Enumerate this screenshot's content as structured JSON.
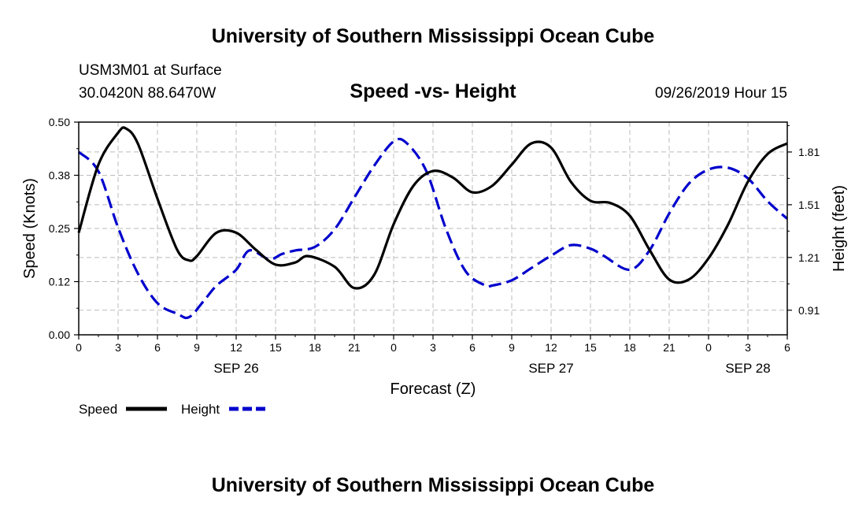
{
  "header": {
    "title": "University of Southern Mississippi Ocean Cube",
    "station": "USM3M01 at Surface",
    "location": "30.0420N 88.6470W",
    "subtitle": "Speed -vs- Height",
    "datetime": "09/26/2019 Hour 15"
  },
  "footer": {
    "title": "University of Southern Mississippi Ocean Cube"
  },
  "legend": {
    "speed_label": "Speed",
    "height_label": "Height"
  },
  "colors": {
    "speed": "#000000",
    "height": "#0000cc",
    "grid": "#bbbbbb"
  },
  "chart_data": {
    "type": "line",
    "title": "Speed -vs- Height",
    "xlabel": "Forecast (Z)",
    "ylabel": "Speed (Knots)",
    "y2label": "Height (feet)",
    "xlim": [
      0,
      54
    ],
    "ylim": [
      0,
      0.5
    ],
    "y2lim": [
      0.77,
      1.98
    ],
    "x_ticks": [
      0,
      3,
      6,
      9,
      12,
      15,
      18,
      21,
      24,
      27,
      30,
      33,
      36,
      39,
      42,
      45,
      48,
      51,
      54
    ],
    "x_tick_labels": [
      "0",
      "3",
      "6",
      "9",
      "12",
      "15",
      "18",
      "21",
      "0",
      "3",
      "6",
      "9",
      "12",
      "15",
      "18",
      "21",
      "0",
      "3",
      "6"
    ],
    "y_ticks": [
      0,
      0.125,
      0.25,
      0.375,
      0.5
    ],
    "y_tick_labels": [
      "0.00",
      "0.12",
      "0.25",
      "0.38",
      "0.50"
    ],
    "y2_ticks": [
      0.91,
      1.21,
      1.51,
      1.81
    ],
    "y2_tick_labels": [
      "0.91",
      "1.21",
      "1.51",
      "1.81"
    ],
    "date_labels": [
      {
        "x": 12,
        "label": "SEP 26"
      },
      {
        "x": 36,
        "label": "SEP 27"
      },
      {
        "x": 51,
        "label": "SEP 28"
      }
    ],
    "grid": true,
    "legend_position": "bottom-left",
    "series": [
      {
        "name": "Speed",
        "axis": "left",
        "style": "solid",
        "x": [
          0,
          1.5,
          3,
          3.6,
          4.5,
          6,
          7.5,
          8.4,
          9,
          10.5,
          12,
          13.5,
          15,
          16.5,
          17.5,
          19.5,
          21,
          22.5,
          24,
          25.5,
          27,
          28.5,
          30,
          31.5,
          33,
          34.5,
          36,
          37.5,
          39,
          40.5,
          42,
          43.5,
          45,
          46.5,
          48,
          49.5,
          51,
          52.5,
          54
        ],
        "values": [
          0.24,
          0.4,
          0.475,
          0.485,
          0.45,
          0.32,
          0.2,
          0.175,
          0.185,
          0.24,
          0.24,
          0.2,
          0.165,
          0.17,
          0.185,
          0.16,
          0.11,
          0.14,
          0.26,
          0.35,
          0.385,
          0.37,
          0.335,
          0.35,
          0.4,
          0.45,
          0.44,
          0.36,
          0.315,
          0.31,
          0.28,
          0.2,
          0.13,
          0.13,
          0.18,
          0.26,
          0.36,
          0.425,
          0.45
        ]
      },
      {
        "name": "Height",
        "axis": "right",
        "style": "dashed",
        "x": [
          0,
          1.5,
          3,
          4.5,
          6,
          7.5,
          8.4,
          9.5,
          10.5,
          12,
          13,
          14.5,
          15.5,
          16.5,
          18,
          19.5,
          21,
          22.5,
          24,
          25,
          26.5,
          28,
          29.5,
          31,
          31.5,
          33,
          34.5,
          36,
          37.5,
          39,
          40,
          42,
          43.5,
          45,
          46.5,
          48,
          49.5,
          51,
          52.5,
          54
        ],
        "values": [
          1.81,
          1.7,
          1.38,
          1.12,
          0.95,
          0.89,
          0.87,
          0.96,
          1.05,
          1.14,
          1.25,
          1.2,
          1.23,
          1.25,
          1.27,
          1.37,
          1.55,
          1.73,
          1.87,
          1.86,
          1.7,
          1.37,
          1.13,
          1.05,
          1.05,
          1.08,
          1.15,
          1.22,
          1.28,
          1.26,
          1.22,
          1.14,
          1.25,
          1.46,
          1.63,
          1.71,
          1.72,
          1.66,
          1.53,
          1.43
        ]
      }
    ]
  }
}
